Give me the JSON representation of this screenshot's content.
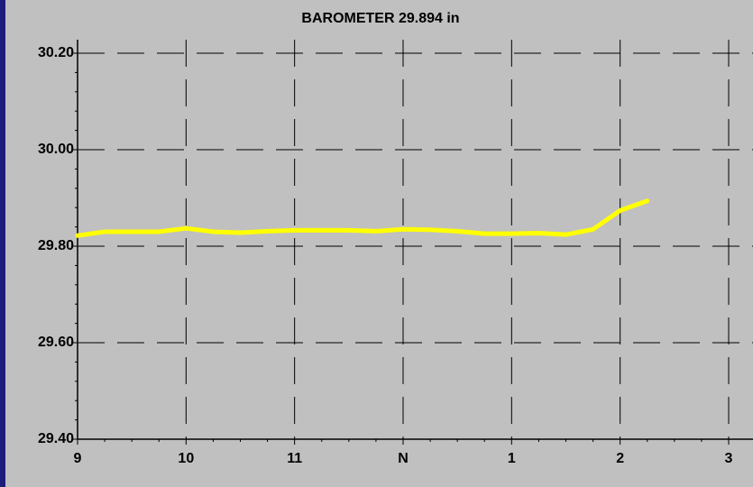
{
  "chart_data": {
    "type": "line",
    "title": "BAROMETER 29.894 in",
    "x": [
      9,
      9.25,
      9.5,
      9.75,
      10,
      10.25,
      10.5,
      10.75,
      11,
      11.25,
      11.5,
      11.75,
      12,
      12.25,
      12.5,
      12.75,
      13,
      13.25,
      13.5,
      13.75,
      14,
      14.25
    ],
    "series": [
      {
        "color": "#ffff00",
        "values": [
          29.822,
          29.83,
          29.83,
          29.83,
          29.837,
          29.83,
          29.828,
          29.831,
          29.833,
          29.833,
          29.833,
          29.831,
          29.835,
          29.834,
          29.831,
          29.826,
          29.826,
          29.827,
          29.824,
          29.835,
          29.874,
          29.894
        ]
      }
    ],
    "xlim": [
      9,
      15
    ],
    "xticks": [
      9,
      10,
      11,
      {
        "value": 12,
        "label": "N"
      },
      {
        "value": 13,
        "label": "1"
      },
      {
        "value": 14,
        "label": "2"
      },
      {
        "value": 15,
        "label": "3"
      }
    ],
    "ylim": [
      29.4,
      30.2
    ],
    "yticks": [
      {
        "value": 29.4,
        "label": "29.40"
      },
      {
        "value": 29.6,
        "label": "29.60"
      },
      {
        "value": 29.8,
        "label": "29.80"
      },
      {
        "value": 30.0,
        "label": "30.00"
      },
      {
        "value": 30.2,
        "label": "30.20"
      }
    ],
    "grid": true
  }
}
